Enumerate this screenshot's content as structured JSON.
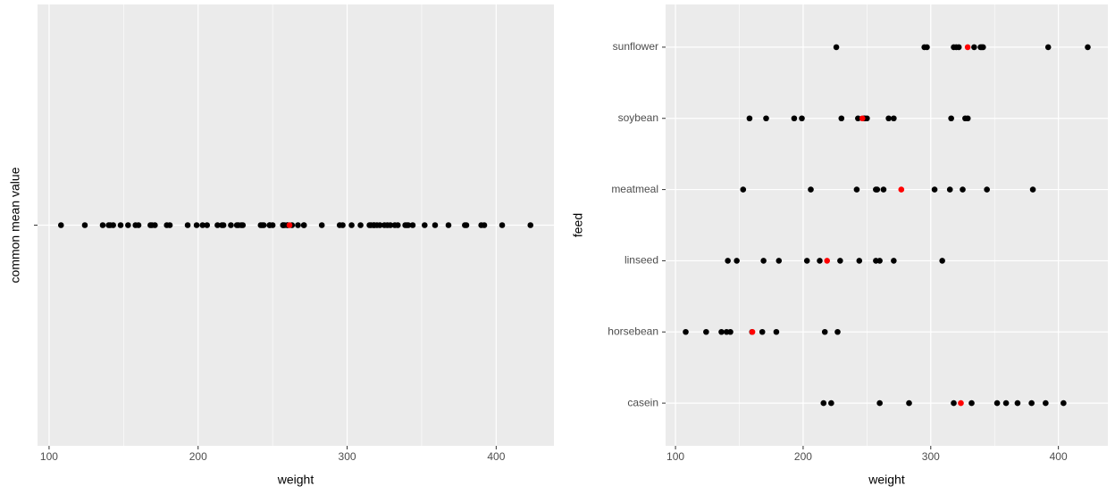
{
  "chart_data": [
    {
      "type": "strip",
      "x_label": "weight",
      "y_label": "common mean value",
      "categories": [
        null
      ],
      "values": [
        [
          179,
          160,
          136,
          227,
          217,
          168,
          108,
          124,
          143,
          140,
          309,
          229,
          181,
          141,
          260,
          203,
          148,
          169,
          213,
          257,
          244,
          271,
          243,
          230,
          248,
          327,
          329,
          250,
          193,
          271,
          316,
          267,
          199,
          171,
          158,
          248,
          423,
          340,
          392,
          339,
          341,
          226,
          320,
          295,
          334,
          322,
          297,
          318,
          325,
          257,
          303,
          315,
          380,
          153,
          263,
          242,
          206,
          344,
          258,
          368,
          390,
          379,
          260,
          404,
          318,
          352,
          359,
          216,
          222,
          283,
          332
        ]
      ],
      "means": [
        261.31
      ],
      "color": "#000000",
      "mean_color": "#ff0000",
      "xlim": [
        92.25,
        438.75
      ],
      "xticks": [
        100,
        200,
        300,
        400
      ],
      "x_minor_ticks": [
        150,
        250,
        350
      ],
      "grid": true
    },
    {
      "type": "strip",
      "x_label": "weight",
      "y_label": "feed",
      "categories": [
        "casein",
        "horsebean",
        "linseed",
        "meatmeal",
        "soybean",
        "sunflower"
      ],
      "values": [
        [
          368,
          390,
          379,
          260,
          404,
          318,
          352,
          359,
          216,
          222,
          283,
          332
        ],
        [
          179,
          160,
          136,
          227,
          217,
          168,
          108,
          124,
          143,
          140
        ],
        [
          309,
          229,
          181,
          141,
          260,
          203,
          148,
          169,
          213,
          257,
          244,
          271
        ],
        [
          325,
          257,
          303,
          315,
          380,
          153,
          263,
          242,
          206,
          344,
          258
        ],
        [
          243,
          230,
          248,
          327,
          329,
          250,
          193,
          271,
          316,
          267,
          199,
          171,
          158,
          248
        ],
        [
          423,
          340,
          392,
          339,
          341,
          226,
          320,
          295,
          334,
          322,
          297,
          318
        ]
      ],
      "means": [
        323.58,
        160.2,
        218.75,
        276.91,
        246.43,
        328.92
      ],
      "color": "#000000",
      "mean_color": "#ff0000",
      "xlim": [
        92.25,
        438.75
      ],
      "xticks": [
        100,
        200,
        300,
        400
      ],
      "x_minor_ticks": [
        150,
        250,
        350
      ],
      "grid": true
    }
  ]
}
